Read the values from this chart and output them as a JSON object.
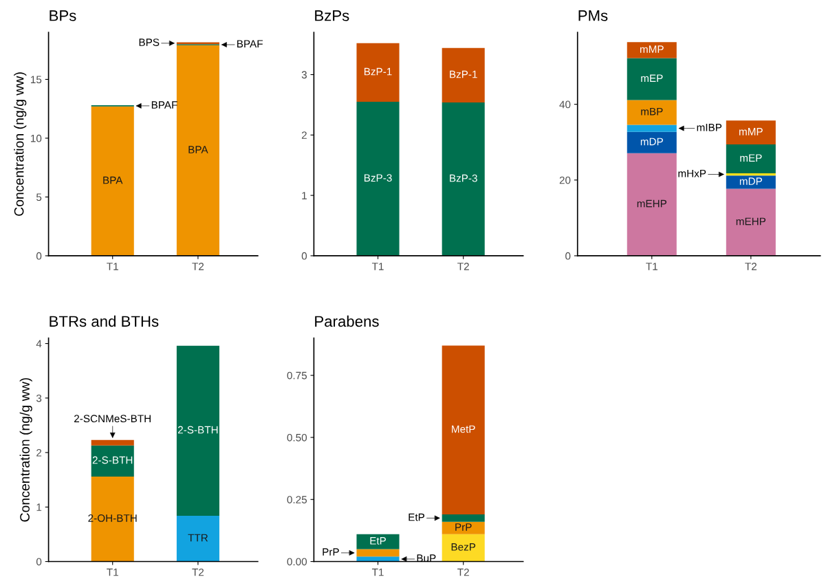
{
  "chart_data": [
    {
      "type": "bar",
      "title": "BPs",
      "ylabel": "Concentration (ng/g ww)",
      "categories": [
        "T1",
        "T2"
      ],
      "stacked": true,
      "ylim": [
        0,
        19
      ],
      "yticks": [
        0,
        5,
        10,
        15
      ],
      "series": [
        {
          "name": "BPA",
          "color": "#ef9400",
          "values": [
            12.7,
            17.9
          ]
        },
        {
          "name": "BPAF",
          "color": "#00704f",
          "values": [
            0.1,
            0.1
          ]
        },
        {
          "name": "BPS",
          "color": "#cc4f00",
          "values": [
            null,
            0.15
          ]
        }
      ]
    },
    {
      "type": "bar",
      "title": "BzPs",
      "categories": [
        "T1",
        "T2"
      ],
      "stacked": true,
      "ylim": [
        0,
        3.7
      ],
      "yticks": [
        0,
        1,
        2,
        3
      ],
      "series": [
        {
          "name": "BzP-3",
          "color": "#00704f",
          "values": [
            2.55,
            2.54
          ]
        },
        {
          "name": "BzP-1",
          "color": "#cc4f00",
          "values": [
            0.97,
            0.9
          ]
        }
      ]
    },
    {
      "type": "bar",
      "title": "PMs",
      "categories": [
        "T1",
        "T2"
      ],
      "stacked": true,
      "ylim": [
        0,
        59
      ],
      "yticks": [
        0,
        20,
        40
      ],
      "series": [
        {
          "name": "mEHP",
          "color": "#cd77a0",
          "values": [
            27.1,
            17.7
          ]
        },
        {
          "name": "mDP",
          "color": "#0055aa",
          "values": [
            5.6,
            3.5
          ]
        },
        {
          "name": "mHxP",
          "color": "#fde01a",
          "values": [
            null,
            0.6
          ]
        },
        {
          "name": "mIBP",
          "color": "#12a3e0",
          "values": [
            1.9,
            null
          ]
        },
        {
          "name": "mBP",
          "color": "#ef9400",
          "values": [
            6.5,
            null
          ]
        },
        {
          "name": "mEP",
          "color": "#00704f",
          "values": [
            11.1,
            7.6
          ]
        },
        {
          "name": "mMP",
          "color": "#cc4f00",
          "values": [
            4.2,
            6.3
          ]
        }
      ]
    },
    {
      "type": "bar",
      "title": "BTRs and BTHs",
      "ylabel": "Concentration (ng/g ww)",
      "categories": [
        "T1",
        "T2"
      ],
      "stacked": true,
      "ylim": [
        0,
        4.1
      ],
      "yticks": [
        0,
        1,
        2,
        3,
        4
      ],
      "series": [
        {
          "name": "TTR",
          "color": "#12a3e0",
          "values": [
            null,
            0.84
          ]
        },
        {
          "name": "2-OH-BTH",
          "color": "#ef9400",
          "values": [
            1.56,
            null
          ]
        },
        {
          "name": "2-S-BTH",
          "color": "#00704f",
          "values": [
            0.57,
            3.12
          ]
        },
        {
          "name": "2-SCNMeS-BTH",
          "color": "#cc4f00",
          "values": [
            0.1,
            null
          ]
        }
      ]
    },
    {
      "type": "bar",
      "title": "Parabens",
      "categories": [
        "T1",
        "T2"
      ],
      "stacked": true,
      "ylim": [
        0,
        0.9
      ],
      "yticks": [
        {
          "value": 0,
          "label": "0.00"
        },
        {
          "value": 0.25,
          "label": "0.25"
        },
        {
          "value": 0.5,
          "label": "0.50"
        },
        {
          "value": 0.75,
          "label": "0.75"
        }
      ],
      "series": [
        {
          "name": "BezP",
          "color": "#fdda24",
          "values": [
            null,
            0.11
          ]
        },
        {
          "name": "BuP",
          "color": "#12a3e0",
          "values": [
            0.02,
            null
          ]
        },
        {
          "name": "PrP",
          "color": "#ef9400",
          "values": [
            0.03,
            0.05
          ]
        },
        {
          "name": "EtP",
          "color": "#00704f",
          "values": [
            0.06,
            0.03
          ]
        },
        {
          "name": "MetP",
          "color": "#cc4f00",
          "values": [
            null,
            0.68
          ]
        }
      ]
    }
  ]
}
